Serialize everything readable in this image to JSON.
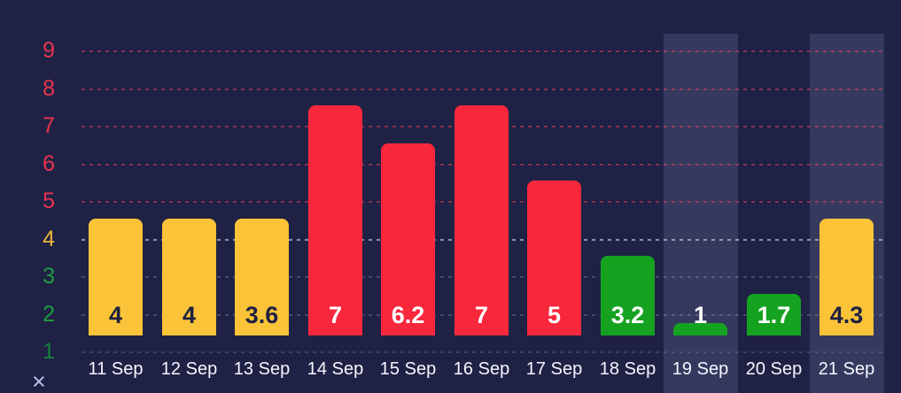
{
  "chart_data": {
    "type": "bar",
    "title": "",
    "xlabel": "",
    "ylabel": "",
    "legend": "none",
    "grid": "horizontal-dashed",
    "y_axis": {
      "ticks": [
        9,
        8,
        7,
        6,
        5,
        4,
        3,
        2,
        1
      ],
      "range": [
        0,
        9.5
      ]
    },
    "categories": [
      "11 Sep",
      "12 Sep",
      "13 Sep",
      "14 Sep",
      "15 Sep",
      "16 Sep",
      "17 Sep",
      "18 Sep",
      "19 Sep",
      "20 Sep",
      "21 Sep"
    ],
    "values": [
      4,
      4,
      3.6,
      7,
      6.2,
      7,
      5,
      3.2,
      1,
      1.7,
      4.3
    ],
    "bars": [
      {
        "date": "11 Sep",
        "value": 4,
        "label": "4",
        "level": "moderate",
        "highlighted": false
      },
      {
        "date": "12 Sep",
        "value": 4,
        "label": "4",
        "level": "moderate",
        "highlighted": false
      },
      {
        "date": "13 Sep",
        "value": 3.6,
        "label": "3.6",
        "level": "moderate",
        "highlighted": false
      },
      {
        "date": "14 Sep",
        "value": 7,
        "label": "7",
        "level": "high",
        "highlighted": false
      },
      {
        "date": "15 Sep",
        "value": 6.2,
        "label": "6.2",
        "level": "high",
        "highlighted": false
      },
      {
        "date": "16 Sep",
        "value": 7,
        "label": "7",
        "level": "high",
        "highlighted": false
      },
      {
        "date": "17 Sep",
        "value": 5,
        "label": "5",
        "level": "high",
        "highlighted": false
      },
      {
        "date": "18 Sep",
        "value": 3.2,
        "label": "3.2",
        "level": "low",
        "highlighted": false
      },
      {
        "date": "19 Sep",
        "value": 1,
        "label": "1",
        "level": "low",
        "highlighted": true
      },
      {
        "date": "20 Sep",
        "value": 1.7,
        "label": "1.7",
        "level": "low",
        "highlighted": false
      },
      {
        "date": "21 Sep",
        "value": 4.3,
        "label": "4.3",
        "level": "moderate",
        "highlighted": true
      }
    ],
    "highlighted_categories": [
      "19 Sep",
      "21 Sep"
    ]
  },
  "colors": {
    "background": "#1f2244",
    "bar_high": "#f9273c",
    "bar_moderate": "#fbc337",
    "bar_low": "#15a221",
    "label_on_high": "#ffffff",
    "label_on_moderate": "#1e2142",
    "label_on_low": "#ffffff",
    "axis_tick_high": "#ea3450",
    "axis_tick_moderate": "#eeb53e",
    "axis_tick_low": "#1f9d40",
    "axis_tick_low_dim": "#14813a",
    "date_label": "#f5f7ff",
    "column_highlight": "rgba(169,178,230,0.16)",
    "close_icon": "#b7c0ec"
  },
  "icons": {
    "close": "×"
  }
}
